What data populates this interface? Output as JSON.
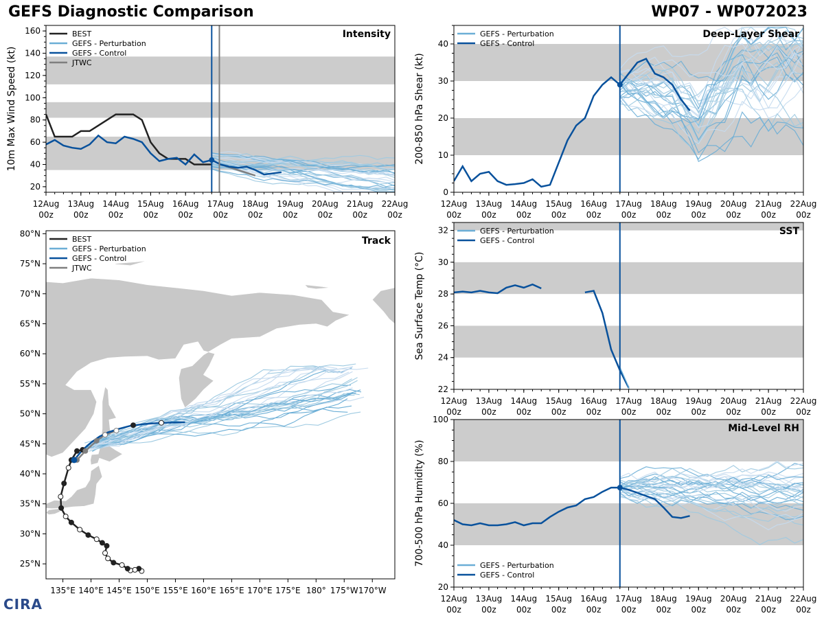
{
  "title": {
    "left": "GEFS Diagnostic Comparison",
    "right": "WP07 - WP072023"
  },
  "logo": {
    "text": "CIRA"
  },
  "colors": {
    "best": "#222222",
    "perturbation": "#6baed6",
    "control": "#08519c",
    "jtwc": "#7f7f7f",
    "band": "#cccccc",
    "land": "#c8c8c8",
    "time_line": "#08519c",
    "jtwc_line": "#7f7f7f"
  },
  "time_axis": {
    "ticks": [
      {
        "day": 0,
        "l1": "12Aug",
        "l2": "00z"
      },
      {
        "day": 1,
        "l1": "13Aug",
        "l2": "00z"
      },
      {
        "day": 2,
        "l1": "14Aug",
        "l2": "00z"
      },
      {
        "day": 3,
        "l1": "15Aug",
        "l2": "00z"
      },
      {
        "day": 4,
        "l1": "16Aug",
        "l2": "00z"
      },
      {
        "day": 5,
        "l1": "17Aug",
        "l2": "00z"
      },
      {
        "day": 6,
        "l1": "18Aug",
        "l2": "00z"
      },
      {
        "day": 7,
        "l1": "19Aug",
        "l2": "00z"
      },
      {
        "day": 8,
        "l1": "20Aug",
        "l2": "00z"
      },
      {
        "day": 9,
        "l1": "21Aug",
        "l2": "00z"
      },
      {
        "day": 10,
        "l1": "22Aug",
        "l2": "00z"
      }
    ],
    "current_day": 4.75,
    "jtwc_day": 4.97
  },
  "chart_data": [
    {
      "id": "intensity",
      "type": "line",
      "title": "Intensity",
      "ylabel": "10m Max Wind Speed (kt)",
      "xlim": [
        0,
        10
      ],
      "ylim": [
        15,
        165
      ],
      "yticks": [
        20,
        40,
        60,
        80,
        100,
        120,
        140,
        160
      ],
      "bands": [
        [
          35,
          65
        ],
        [
          82,
          96
        ],
        [
          112,
          137
        ]
      ],
      "legend": [
        "BEST",
        "GEFS - Perturbation",
        "GEFS - Control",
        "JTWC"
      ],
      "best": {
        "x": [
          0,
          0.25,
          0.5,
          0.75,
          1,
          1.25,
          1.5,
          1.75,
          2,
          2.25,
          2.5,
          2.75,
          3,
          3.25,
          3.5,
          3.75,
          4,
          4.25,
          4.5,
          4.75
        ],
        "y": [
          85,
          65,
          65,
          65,
          70,
          70,
          75,
          80,
          85,
          85,
          85,
          80,
          60,
          50,
          45,
          45,
          45,
          40,
          40,
          40
        ]
      },
      "control": {
        "x": [
          0,
          0.25,
          0.5,
          0.75,
          1,
          1.25,
          1.5,
          1.75,
          2,
          2.25,
          2.5,
          2.75,
          3,
          3.25,
          3.5,
          3.75,
          4,
          4.25,
          4.5,
          4.75,
          5,
          5.25,
          5.5,
          5.75,
          6,
          6.25,
          6.5,
          6.75
        ],
        "y": [
          58,
          62,
          57,
          55,
          54,
          58,
          66,
          60,
          59,
          65,
          63,
          60,
          50,
          43,
          45,
          46,
          40,
          49,
          42,
          44,
          40,
          38,
          37,
          38,
          35,
          31,
          32,
          33
        ]
      },
      "jtwc": {
        "x": [
          4.75,
          5,
          5.5,
          6
        ],
        "y": [
          44,
          40,
          35,
          30
        ]
      },
      "pert_seed": 7,
      "current_marker": {
        "x": 4.75,
        "y": 44
      }
    },
    {
      "id": "shear",
      "type": "line",
      "title": "Deep-Layer Shear",
      "ylabel": "200-850 hPa Shear (kt)",
      "xlim": [
        0,
        10
      ],
      "ylim": [
        0,
        45
      ],
      "yticks": [
        0,
        10,
        20,
        30,
        40
      ],
      "bands": [
        [
          10,
          20
        ],
        [
          30,
          40
        ]
      ],
      "legend": [
        "GEFS - Perturbation",
        "GEFS - Control"
      ],
      "control": {
        "x": [
          0,
          0.25,
          0.5,
          0.75,
          1,
          1.25,
          1.5,
          1.75,
          2,
          2.25,
          2.5,
          2.75,
          3,
          3.25,
          3.5,
          3.75,
          4,
          4.25,
          4.5,
          4.75,
          5,
          5.25,
          5.5,
          5.75,
          6,
          6.25,
          6.5,
          6.75
        ],
        "y": [
          3,
          7,
          3,
          5,
          5.5,
          3,
          2,
          2.2,
          2.5,
          3.5,
          1.5,
          2,
          8,
          14,
          18,
          20,
          26,
          29,
          31,
          29,
          32,
          35,
          36,
          32,
          31,
          29,
          25,
          22
        ]
      },
      "pert_seed": 11,
      "current_marker": {
        "x": 4.75,
        "y": 29
      }
    },
    {
      "id": "sst",
      "type": "line",
      "title": "SST",
      "ylabel": "Sea Surface Temp (°C)",
      "xlim": [
        0,
        10
      ],
      "ylim": [
        22,
        32.5
      ],
      "yticks": [
        22,
        24,
        26,
        28,
        30,
        32
      ],
      "bands": [
        [
          24,
          26
        ],
        [
          28,
          30
        ],
        [
          32,
          32.5
        ]
      ],
      "legend": [
        "GEFS - Perturbation",
        "GEFS - Control"
      ],
      "control_segments": [
        {
          "x": [
            0,
            0.25,
            0.5,
            0.75,
            1,
            1.25,
            1.5,
            1.75,
            2,
            2.25,
            2.5
          ],
          "y": [
            28.1,
            28.15,
            28.1,
            28.2,
            28.1,
            28.05,
            28.4,
            28.55,
            28.4,
            28.6,
            28.35
          ]
        },
        {
          "x": [
            3.75,
            4,
            4.25,
            4.5,
            4.75,
            5
          ],
          "y": [
            28.1,
            28.2,
            26.8,
            24.5,
            23.2,
            22.1
          ]
        }
      ]
    },
    {
      "id": "rh",
      "type": "line",
      "title": "Mid-Level RH",
      "ylabel": "700-500 hPa Humidity (%)",
      "xlim": [
        0,
        10
      ],
      "ylim": [
        20,
        100
      ],
      "yticks": [
        20,
        40,
        60,
        80,
        100
      ],
      "bands": [
        [
          40,
          60
        ],
        [
          80,
          100
        ]
      ],
      "legend": [
        "GEFS - Perturbation",
        "GEFS - Control"
      ],
      "control": {
        "x": [
          0,
          0.25,
          0.5,
          0.75,
          1,
          1.25,
          1.5,
          1.75,
          2,
          2.25,
          2.5,
          2.75,
          3,
          3.25,
          3.5,
          3.75,
          4,
          4.25,
          4.5,
          4.75,
          5,
          5.25,
          5.5,
          5.75,
          6,
          6.25,
          6.5,
          6.75
        ],
        "y": [
          52,
          50,
          49.5,
          50.5,
          49.5,
          49.5,
          50,
          51,
          49.5,
          50.5,
          50.5,
          53.5,
          56,
          58,
          59,
          62,
          63,
          65.5,
          67.5,
          67.5,
          66.5,
          65,
          63.5,
          62,
          58,
          53.5,
          53,
          54
        ]
      },
      "pert_seed": 23,
      "current_marker": {
        "x": 4.75,
        "y": 67.5
      }
    },
    {
      "id": "track",
      "type": "line",
      "title": "Track",
      "legend": [
        "BEST",
        "GEFS - Perturbation",
        "GEFS - Control",
        "JTWC"
      ],
      "lon_range": [
        132,
        194
      ],
      "lat_range": [
        22.5,
        80.5
      ],
      "lon_ticks": [
        {
          "v": 135,
          "l": "135°E"
        },
        {
          "v": 140,
          "l": "140°E"
        },
        {
          "v": 145,
          "l": "145°E"
        },
        {
          "v": 150,
          "l": "150°E"
        },
        {
          "v": 155,
          "l": "155°E"
        },
        {
          "v": 160,
          "l": "160°E"
        },
        {
          "v": 165,
          "l": "165°E"
        },
        {
          "v": 170,
          "l": "170°E"
        },
        {
          "v": 175,
          "l": "175°E"
        },
        {
          "v": 180,
          "l": "180°"
        },
        {
          "v": 185,
          "l": "175°W"
        },
        {
          "v": 190,
          "l": "170°W"
        }
      ],
      "lat_ticks": [
        {
          "v": 25,
          "l": "25°N"
        },
        {
          "v": 30,
          "l": "30°N"
        },
        {
          "v": 35,
          "l": "35°N"
        },
        {
          "v": 40,
          "l": "40°N"
        },
        {
          "v": 45,
          "l": "45°N"
        },
        {
          "v": 50,
          "l": "50°N"
        },
        {
          "v": 55,
          "l": "55°N"
        },
        {
          "v": 60,
          "l": "60°N"
        },
        {
          "v": 65,
          "l": "65°N"
        },
        {
          "v": 70,
          "l": "70°N"
        },
        {
          "v": 75,
          "l": "75°N"
        },
        {
          "v": 80,
          "l": "80°N"
        }
      ],
      "best": {
        "lon": [
          149.0,
          148.5,
          147.8,
          147.0,
          146.5,
          145.5,
          144.0,
          143.0,
          142.5,
          142.8,
          142.0,
          141.0,
          139.5,
          138.0,
          136.5,
          135.5,
          134.7,
          134.6,
          135.2,
          136.0,
          136.5,
          137.5,
          138.5
        ],
        "lat": [
          23.8,
          24.2,
          24.0,
          23.9,
          24.2,
          24.8,
          25.2,
          25.9,
          26.8,
          28.0,
          28.5,
          29.1,
          29.8,
          30.7,
          31.9,
          32.9,
          34.3,
          36.2,
          38.4,
          41.0,
          42.3,
          43.8,
          44.0
        ]
      },
      "best_open": [
        0,
        2,
        3,
        5,
        7,
        8,
        11,
        13,
        15,
        17,
        19
      ],
      "control": {
        "lon": [
          137.0,
          138.5,
          140.0,
          141.5,
          143.0,
          145.0,
          147.0,
          149.5,
          152.5,
          156.7
        ],
        "lat": [
          42.3,
          44.0,
          45.2,
          46.2,
          46.9,
          47.5,
          48.0,
          48.3,
          48.5,
          48.6
        ]
      },
      "jtwc": {
        "lon": [
          137.5,
          139.0,
          141.0,
          142.5,
          144.5
        ],
        "lat": [
          42.3,
          43.8,
          45.5,
          46.5,
          47.2
        ]
      },
      "jtwc_open": [
        3,
        4
      ],
      "pert_seed": 31
    }
  ]
}
